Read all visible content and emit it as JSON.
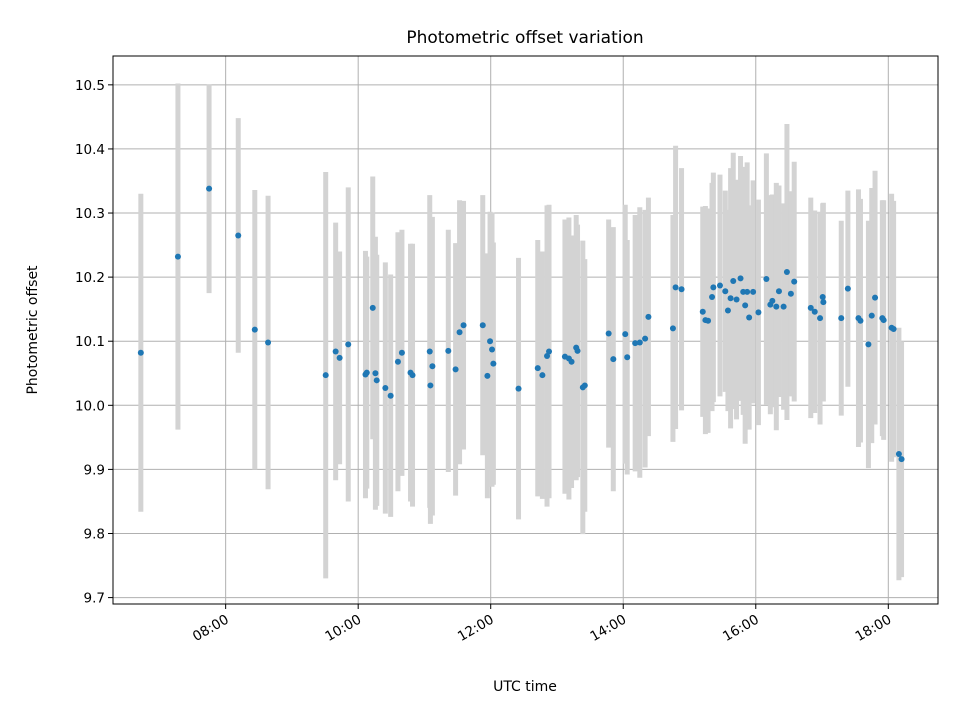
{
  "chart_data": {
    "type": "scatter",
    "title": "Photometric offset variation",
    "xlabel": "UTC time",
    "ylabel": "Photometric offset",
    "grid": true,
    "legend": "none",
    "x_tick_labels": [
      "08:00",
      "10:00",
      "12:00",
      "14:00",
      "16:00",
      "18:00"
    ],
    "x_ticks_hours": [
      8,
      10,
      12,
      14,
      16,
      18
    ],
    "xlim_hours": [
      6.3,
      18.75
    ],
    "y_ticks": [
      9.7,
      9.8,
      9.9,
      10.0,
      10.1,
      10.2,
      10.3,
      10.4,
      10.5
    ],
    "ylim": [
      9.69,
      10.545
    ],
    "colors": {
      "point": "#1f77b4",
      "errorbar": "#d3d3d3",
      "grid": "#b0b0b0"
    },
    "series": [
      {
        "time_hours": [
          6.72,
          7.28,
          7.75,
          8.19,
          8.44,
          8.64,
          9.51,
          9.66,
          9.72,
          9.85,
          10.11,
          10.13,
          10.22,
          10.26,
          10.28,
          10.41,
          10.49,
          10.6,
          10.66,
          10.79,
          10.82,
          11.08,
          11.09,
          11.12,
          11.36,
          11.47,
          11.53,
          11.59,
          11.88,
          11.95,
          11.99,
          12.02,
          12.04,
          12.42,
          12.71,
          12.78,
          12.85,
          12.88,
          13.12,
          13.18,
          13.22,
          13.29,
          13.31,
          13.39,
          13.42,
          13.78,
          13.85,
          14.03,
          14.06,
          14.18,
          14.25,
          14.33,
          14.38,
          14.75,
          14.79,
          14.88,
          15.2,
          15.24,
          15.28,
          15.34,
          15.36,
          15.46,
          15.54,
          15.58,
          15.62,
          15.66,
          15.71,
          15.77,
          15.81,
          15.84,
          15.87,
          15.9,
          15.96,
          16.04,
          16.16,
          16.22,
          16.25,
          16.31,
          16.35,
          16.42,
          16.47,
          16.53,
          16.58,
          16.83,
          16.89,
          16.97,
          17.01,
          17.02,
          17.29,
          17.39,
          17.55,
          17.58,
          17.7,
          17.75,
          17.8,
          17.91,
          17.93,
          18.05,
          18.08,
          18.16,
          18.2
        ],
        "offset": [
          10.082,
          10.232,
          10.338,
          10.265,
          10.118,
          10.098,
          10.047,
          10.084,
          10.074,
          10.095,
          10.048,
          10.051,
          10.152,
          10.05,
          10.039,
          10.027,
          10.015,
          10.068,
          10.082,
          10.051,
          10.047,
          10.084,
          10.031,
          10.061,
          10.085,
          10.056,
          10.114,
          10.125,
          10.125,
          10.046,
          10.1,
          10.087,
          10.065,
          10.026,
          10.058,
          10.047,
          10.077,
          10.084,
          10.076,
          10.073,
          10.068,
          10.09,
          10.085,
          10.028,
          10.031,
          10.112,
          10.072,
          10.111,
          10.075,
          10.097,
          10.098,
          10.104,
          10.138,
          10.12,
          10.184,
          10.181,
          10.146,
          10.133,
          10.132,
          10.169,
          10.184,
          10.187,
          10.178,
          10.148,
          10.167,
          10.194,
          10.165,
          10.198,
          10.177,
          10.156,
          10.177,
          10.137,
          10.177,
          10.145,
          10.197,
          10.157,
          10.163,
          10.154,
          10.178,
          10.154,
          10.208,
          10.174,
          10.193,
          10.152,
          10.146,
          10.136,
          10.169,
          10.161,
          10.136,
          10.182,
          10.136,
          10.132,
          10.095,
          10.14,
          10.168,
          10.136,
          10.133,
          10.121,
          10.119,
          9.924,
          9.916
        ],
        "error": [
          0.248,
          0.27,
          0.163,
          0.183,
          0.218,
          0.229,
          0.317,
          0.201,
          0.166,
          0.245,
          0.193,
          0.181,
          0.205,
          0.213,
          0.196,
          0.196,
          0.189,
          0.202,
          0.192,
          0.201,
          0.205,
          0.244,
          0.216,
          0.233,
          0.189,
          0.197,
          0.206,
          0.194,
          0.203,
          0.191,
          0.202,
          0.214,
          0.189,
          0.204,
          0.2,
          0.193,
          0.235,
          0.229,
          0.214,
          0.22,
          0.197,
          0.207,
          0.197,
          0.229,
          0.197,
          0.178,
          0.206,
          0.202,
          0.183,
          0.2,
          0.211,
          0.201,
          0.186,
          0.177,
          0.221,
          0.189,
          0.164,
          0.178,
          0.175,
          0.178,
          0.179,
          0.173,
          0.157,
          0.157,
          0.203,
          0.2,
          0.187,
          0.191,
          0.192,
          0.216,
          0.202,
          0.175,
          0.174,
          0.176,
          0.196,
          0.171,
          0.166,
          0.193,
          0.165,
          0.161,
          0.231,
          0.16,
          0.187,
          0.172,
          0.158,
          0.166,
          0.146,
          0.155,
          0.152,
          0.153,
          0.201,
          0.19,
          0.193,
          0.199,
          0.198,
          0.184,
          0.187,
          0.209,
          0.2,
          0.197,
          0.184
        ]
      }
    ]
  }
}
